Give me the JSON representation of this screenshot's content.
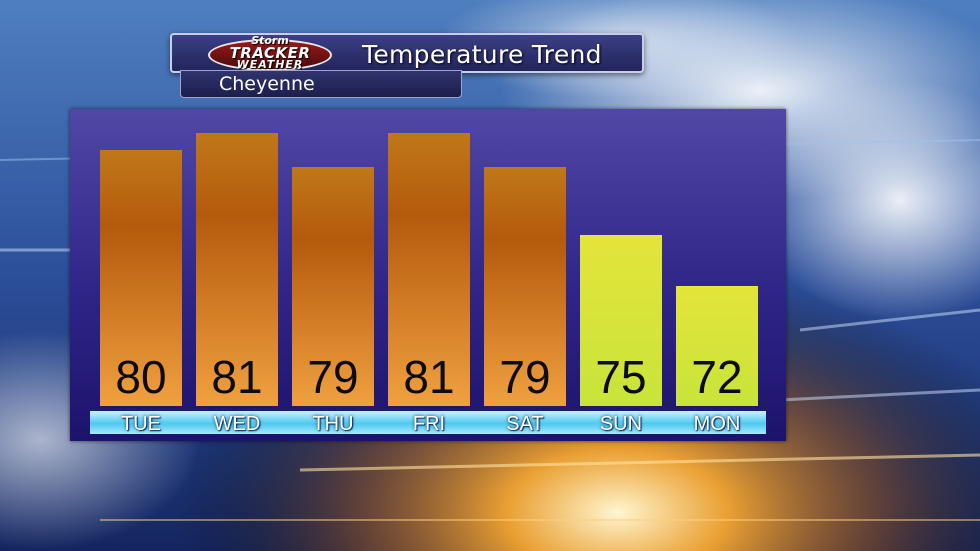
{
  "header": {
    "title": "Temperature Trend",
    "location": "Cheyenne",
    "logo": {
      "line1": "Storm",
      "line2": "TRACKER",
      "line3": "WEATHER"
    }
  },
  "chart_data": {
    "type": "bar",
    "categories": [
      "TUE",
      "WED",
      "THU",
      "FRI",
      "SAT",
      "SUN",
      "MON"
    ],
    "values": [
      80,
      81,
      79,
      81,
      79,
      75,
      72
    ],
    "value_labels": [
      "80",
      "81",
      "79",
      "81",
      "79",
      "75",
      "72"
    ],
    "title": "Temperature Trend",
    "xlabel": "",
    "ylabel": "",
    "grid": false,
    "legend": "none",
    "colors": {
      "warm_top": "#b45a0c",
      "warm_bottom": "#f0a040",
      "cool_top": "#e4e43a",
      "cool_bottom": "#c8e43a",
      "panel": "#3b3196",
      "day_strip": "#4ec9ef"
    }
  }
}
